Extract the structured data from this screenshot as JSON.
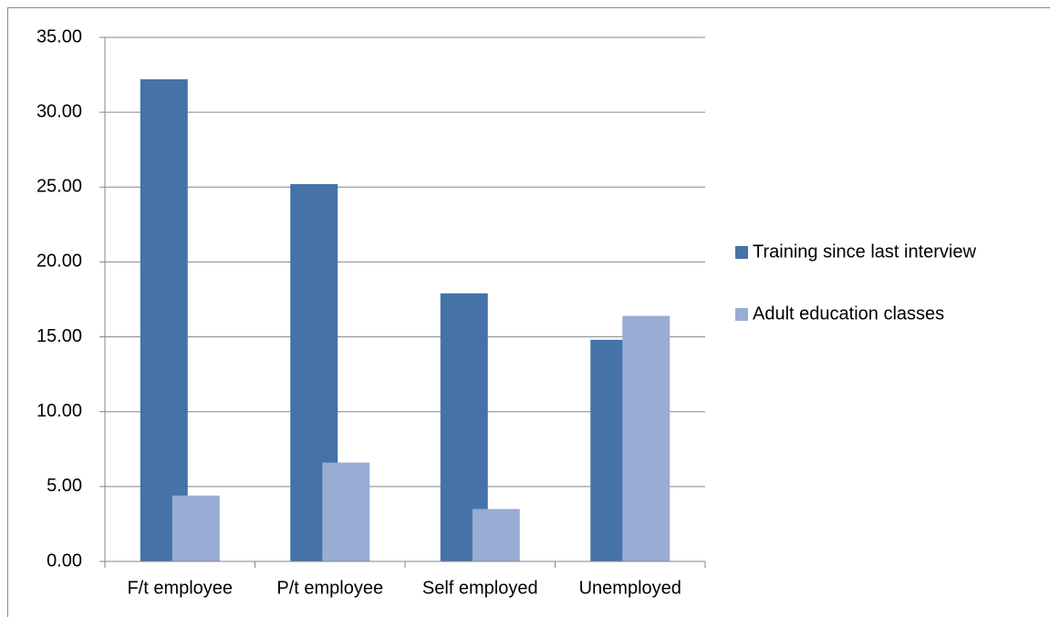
{
  "chart_data": {
    "type": "bar",
    "categories": [
      "F/t employee",
      "P/t employee",
      "Self employed",
      "Unemployed"
    ],
    "series": [
      {
        "name": "Training since last interview",
        "color": "#4572a7",
        "values": [
          32.2,
          25.2,
          17.9,
          14.8
        ]
      },
      {
        "name": "Adult education classes",
        "color": "#98acd4",
        "values": [
          4.4,
          6.6,
          3.5,
          16.4
        ]
      }
    ],
    "ylim": [
      0,
      35
    ],
    "yticks": [
      {
        "value": 0,
        "label": "0.00"
      },
      {
        "value": 5,
        "label": "5.00"
      },
      {
        "value": 10,
        "label": "10.00"
      },
      {
        "value": 15,
        "label": "15.00"
      },
      {
        "value": 20,
        "label": "20.00"
      },
      {
        "value": 25,
        "label": "25.00"
      },
      {
        "value": 30,
        "label": "30.00"
      },
      {
        "value": 35,
        "label": "35.00"
      }
    ],
    "grid": true,
    "legend": "right"
  }
}
